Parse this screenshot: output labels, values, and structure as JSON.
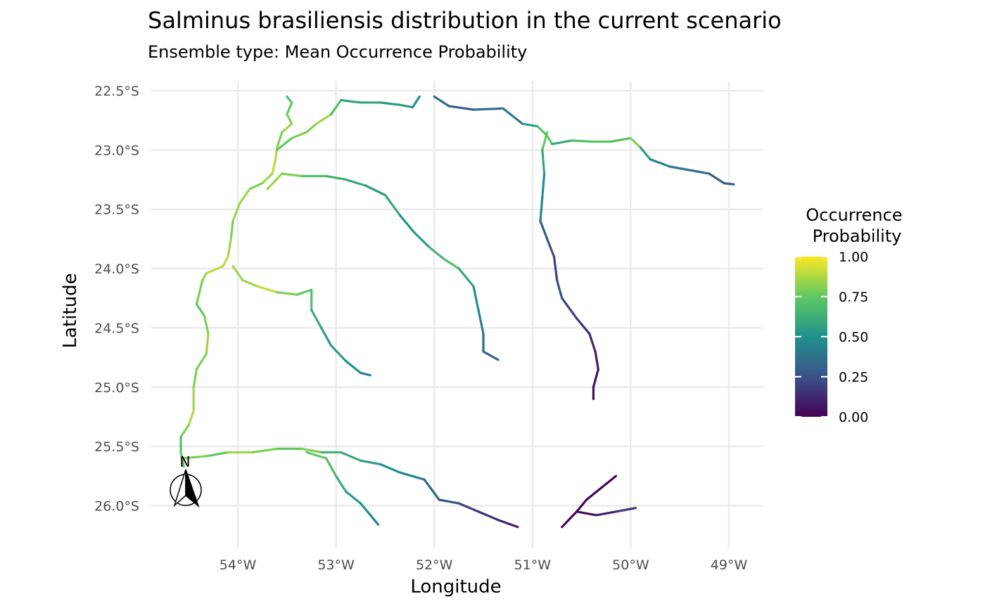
{
  "title": "Salminus brasiliensis distribution in the current scenario",
  "subtitle": "Ensemble type: Mean Occurrence Probability",
  "x_axis": {
    "title": "Longitude",
    "ticks": [
      {
        "value": -54,
        "label": "54°W"
      },
      {
        "value": -53,
        "label": "53°W"
      },
      {
        "value": -52,
        "label": "52°W"
      },
      {
        "value": -51,
        "label": "51°W"
      },
      {
        "value": -50,
        "label": "50°W"
      },
      {
        "value": -49,
        "label": "49°W"
      }
    ]
  },
  "y_axis": {
    "title": "Latitude",
    "ticks": [
      {
        "value": -22.5,
        "label": "22.5°S"
      },
      {
        "value": -23.0,
        "label": "23.0°S"
      },
      {
        "value": -23.5,
        "label": "23.5°S"
      },
      {
        "value": -24.0,
        "label": "24.0°S"
      },
      {
        "value": -24.5,
        "label": "24.5°S"
      },
      {
        "value": -25.0,
        "label": "25.0°S"
      },
      {
        "value": -25.5,
        "label": "25.5°S"
      },
      {
        "value": -26.0,
        "label": "26.0°S"
      }
    ]
  },
  "legend": {
    "title_line1": "Occurrence",
    "title_line2": "Probability",
    "range": [
      0,
      1
    ],
    "colors": [
      "#440154",
      "#3b528b",
      "#21918c",
      "#5ec962",
      "#fde725"
    ],
    "ticks": [
      {
        "value": 1.0,
        "label": "1.00"
      },
      {
        "value": 0.75,
        "label": "0.75"
      },
      {
        "value": 0.5,
        "label": "0.50"
      },
      {
        "value": 0.25,
        "label": "0.25"
      },
      {
        "value": 0.0,
        "label": "0.00"
      }
    ]
  },
  "north_arrow": {
    "label": "N"
  },
  "rivers": [
    {
      "coords": [
        [
          -53.5,
          -22.55
        ],
        [
          -53.45,
          -22.6
        ],
        [
          -53.5,
          -22.7
        ],
        [
          -53.45,
          -22.78
        ],
        [
          -53.55,
          -22.85
        ],
        [
          -53.6,
          -22.98
        ],
        [
          -53.62,
          -23.1
        ],
        [
          -53.65,
          -23.2
        ],
        [
          -53.75,
          -23.28
        ],
        [
          -53.88,
          -23.33
        ],
        [
          -53.98,
          -23.45
        ],
        [
          -54.05,
          -23.6
        ],
        [
          -54.07,
          -23.75
        ],
        [
          -54.1,
          -23.9
        ],
        [
          -54.15,
          -23.98
        ],
        [
          -54.32,
          -24.04
        ],
        [
          -54.36,
          -24.1
        ],
        [
          -54.42,
          -24.3
        ],
        [
          -54.34,
          -24.4
        ],
        [
          -54.3,
          -24.55
        ],
        [
          -54.32,
          -24.72
        ],
        [
          -54.42,
          -24.85
        ],
        [
          -54.45,
          -25.0
        ],
        [
          -54.45,
          -25.2
        ],
        [
          -54.5,
          -25.32
        ],
        [
          -54.58,
          -25.42
        ],
        [
          -54.58,
          -25.55
        ],
        [
          -54.55,
          -25.67
        ]
      ],
      "values": [
        0.7,
        0.75,
        0.8,
        0.85,
        0.8,
        0.88,
        0.9,
        0.85,
        0.8,
        0.85,
        0.85,
        0.8,
        0.85,
        0.9,
        0.9,
        0.85,
        0.8,
        0.75,
        0.8,
        0.85,
        0.8,
        0.8,
        0.85,
        0.88,
        0.8,
        0.7,
        0.75
      ]
    },
    {
      "coords": [
        [
          -53.6,
          -23.0
        ],
        [
          -53.45,
          -22.9
        ],
        [
          -53.3,
          -22.85
        ],
        [
          -53.2,
          -22.78
        ],
        [
          -53.05,
          -22.7
        ],
        [
          -52.95,
          -22.58
        ],
        [
          -52.75,
          -22.6
        ],
        [
          -52.55,
          -22.6
        ],
        [
          -52.35,
          -22.62
        ],
        [
          -52.22,
          -22.64
        ],
        [
          -52.15,
          -22.55
        ]
      ],
      "values": [
        0.75,
        0.8,
        0.8,
        0.85,
        0.7,
        0.6,
        0.6,
        0.55,
        0.55,
        0.5
      ]
    },
    {
      "coords": [
        [
          -52.0,
          -22.55
        ],
        [
          -51.85,
          -22.63
        ],
        [
          -51.6,
          -22.66
        ],
        [
          -51.3,
          -22.65
        ],
        [
          -51.1,
          -22.78
        ],
        [
          -50.95,
          -22.8
        ],
        [
          -50.85,
          -22.88
        ],
        [
          -50.8,
          -22.95
        ],
        [
          -50.6,
          -22.92
        ],
        [
          -50.4,
          -22.93
        ],
        [
          -50.2,
          -22.93
        ],
        [
          -50.0,
          -22.9
        ],
        [
          -49.9,
          -22.98
        ],
        [
          -49.8,
          -23.08
        ],
        [
          -49.6,
          -23.14
        ],
        [
          -49.4,
          -23.17
        ],
        [
          -49.2,
          -23.2
        ],
        [
          -49.05,
          -23.28
        ],
        [
          -48.95,
          -23.29
        ]
      ],
      "values": [
        0.35,
        0.3,
        0.35,
        0.4,
        0.55,
        0.7,
        0.75,
        0.6,
        0.7,
        0.75,
        0.7,
        0.8,
        0.55,
        0.45,
        0.4,
        0.35,
        0.3,
        0.3
      ]
    },
    {
      "coords": [
        [
          -50.85,
          -22.85
        ],
        [
          -50.9,
          -23.0
        ],
        [
          -50.88,
          -23.2
        ],
        [
          -50.9,
          -23.4
        ],
        [
          -50.92,
          -23.6
        ],
        [
          -50.85,
          -23.75
        ],
        [
          -50.78,
          -23.9
        ],
        [
          -50.75,
          -24.1
        ],
        [
          -50.7,
          -24.25
        ],
        [
          -50.55,
          -24.42
        ],
        [
          -50.42,
          -24.55
        ],
        [
          -50.36,
          -24.7
        ],
        [
          -50.33,
          -24.85
        ],
        [
          -50.38,
          -25.0
        ],
        [
          -50.38,
          -25.1
        ]
      ],
      "values": [
        0.75,
        0.6,
        0.5,
        0.45,
        0.3,
        0.25,
        0.2,
        0.25,
        0.2,
        0.15,
        0.12,
        0.08,
        0.06,
        0.04
      ]
    },
    {
      "coords": [
        [
          -53.7,
          -23.33
        ],
        [
          -53.55,
          -23.2
        ],
        [
          -53.35,
          -23.22
        ],
        [
          -53.1,
          -23.22
        ],
        [
          -52.9,
          -23.25
        ],
        [
          -52.7,
          -23.3
        ],
        [
          -52.5,
          -23.38
        ],
        [
          -52.35,
          -23.55
        ],
        [
          -52.2,
          -23.7
        ],
        [
          -52.05,
          -23.82
        ],
        [
          -51.9,
          -23.92
        ],
        [
          -51.75,
          -24.0
        ],
        [
          -51.6,
          -24.15
        ],
        [
          -51.55,
          -24.35
        ],
        [
          -51.5,
          -24.55
        ],
        [
          -51.5,
          -24.7
        ],
        [
          -51.35,
          -24.77
        ]
      ],
      "values": [
        0.85,
        0.8,
        0.7,
        0.65,
        0.6,
        0.55,
        0.6,
        0.5,
        0.55,
        0.65,
        0.7,
        0.6,
        0.5,
        0.45,
        0.35,
        0.3
      ]
    },
    {
      "coords": [
        [
          -54.05,
          -23.98
        ],
        [
          -53.95,
          -24.1
        ],
        [
          -53.8,
          -24.15
        ],
        [
          -53.6,
          -24.2
        ],
        [
          -53.4,
          -24.22
        ],
        [
          -53.25,
          -24.18
        ],
        [
          -53.25,
          -24.35
        ],
        [
          -53.15,
          -24.5
        ],
        [
          -53.05,
          -24.65
        ],
        [
          -52.9,
          -24.78
        ],
        [
          -52.75,
          -24.88
        ],
        [
          -52.65,
          -24.9
        ]
      ],
      "values": [
        0.85,
        0.85,
        0.9,
        0.8,
        0.75,
        0.7,
        0.6,
        0.55,
        0.55,
        0.5,
        0.45
      ]
    },
    {
      "coords": [
        [
          -54.55,
          -25.6
        ],
        [
          -54.3,
          -25.58
        ],
        [
          -54.1,
          -25.55
        ],
        [
          -53.85,
          -25.55
        ],
        [
          -53.6,
          -25.52
        ],
        [
          -53.35,
          -25.52
        ],
        [
          -53.15,
          -25.55
        ],
        [
          -52.95,
          -25.55
        ],
        [
          -52.75,
          -25.62
        ],
        [
          -52.55,
          -25.65
        ],
        [
          -52.35,
          -25.72
        ],
        [
          -52.1,
          -25.78
        ],
        [
          -51.95,
          -25.95
        ],
        [
          -51.75,
          -25.98
        ],
        [
          -51.55,
          -26.05
        ],
        [
          -51.35,
          -26.12
        ],
        [
          -51.15,
          -26.18
        ]
      ],
      "values": [
        0.8,
        0.75,
        0.85,
        0.8,
        0.75,
        0.8,
        0.65,
        0.6,
        0.55,
        0.5,
        0.45,
        0.35,
        0.25,
        0.2,
        0.15,
        0.1
      ]
    },
    {
      "coords": [
        [
          -53.3,
          -25.55
        ],
        [
          -53.1,
          -25.6
        ],
        [
          -53.0,
          -25.75
        ],
        [
          -52.9,
          -25.88
        ],
        [
          -52.75,
          -25.98
        ],
        [
          -52.65,
          -26.08
        ],
        [
          -52.57,
          -26.16
        ]
      ],
      "values": [
        0.75,
        0.7,
        0.6,
        0.55,
        0.5,
        0.45
      ]
    },
    {
      "coords": [
        [
          -50.7,
          -26.18
        ],
        [
          -50.55,
          -26.05
        ],
        [
          -50.45,
          -25.95
        ],
        [
          -50.3,
          -25.85
        ],
        [
          -50.15,
          -25.75
        ]
      ],
      "values": [
        0.02,
        0.02,
        0.02,
        0.02
      ]
    },
    {
      "coords": [
        [
          -50.55,
          -26.05
        ],
        [
          -50.35,
          -26.08
        ],
        [
          -50.15,
          -26.05
        ],
        [
          -49.95,
          -26.02
        ]
      ],
      "values": [
        0.05,
        0.1,
        0.15
      ]
    }
  ]
}
